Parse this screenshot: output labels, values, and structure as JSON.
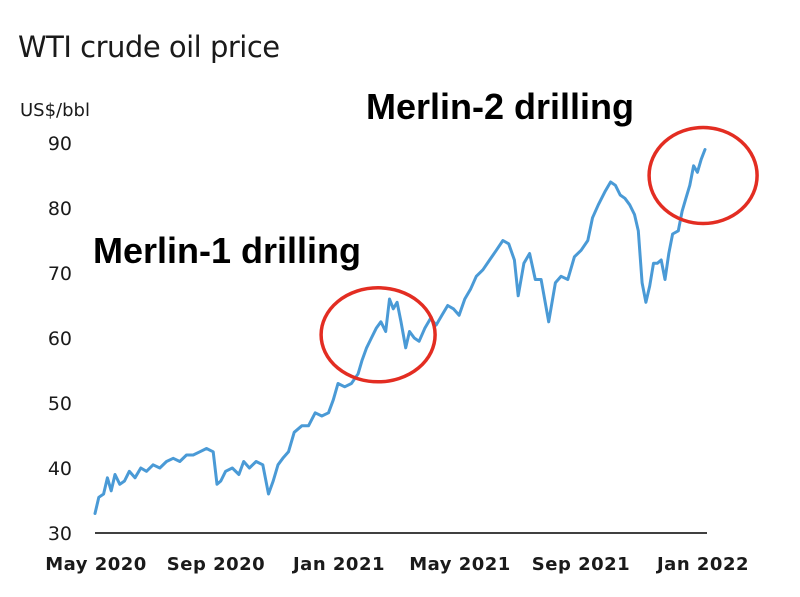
{
  "chart_data": {
    "type": "line",
    "title": "WTI crude oil price",
    "ylabel": "US$/bbl",
    "xlabel": "",
    "ylim": [
      30,
      90
    ],
    "yticks": [
      30,
      40,
      50,
      60,
      70,
      80,
      90
    ],
    "xticks": [
      "May 2020",
      "Sep 2020",
      "Jan 2021",
      "May 2021",
      "Sep 2021",
      "Jan 2022"
    ],
    "xlim": [
      "2020-05-01",
      "2022-01-31"
    ],
    "grid": false,
    "series": [
      {
        "color": "#4a9ad6",
        "points": [
          [
            "2020-05-01",
            33.0
          ],
          [
            "2020-05-05",
            35.5
          ],
          [
            "2020-05-10",
            36.0
          ],
          [
            "2020-05-14",
            38.5
          ],
          [
            "2020-05-18",
            36.5
          ],
          [
            "2020-05-22",
            39.0
          ],
          [
            "2020-05-27",
            37.5
          ],
          [
            "2020-06-01",
            38.0
          ],
          [
            "2020-06-06",
            39.5
          ],
          [
            "2020-06-12",
            38.5
          ],
          [
            "2020-06-18",
            40.0
          ],
          [
            "2020-06-24",
            39.5
          ],
          [
            "2020-07-01",
            40.5
          ],
          [
            "2020-07-08",
            40.0
          ],
          [
            "2020-07-15",
            41.0
          ],
          [
            "2020-07-22",
            41.5
          ],
          [
            "2020-07-29",
            41.0
          ],
          [
            "2020-08-05",
            42.0
          ],
          [
            "2020-08-12",
            42.0
          ],
          [
            "2020-08-19",
            42.5
          ],
          [
            "2020-08-26",
            43.0
          ],
          [
            "2020-09-02",
            42.5
          ],
          [
            "2020-09-06",
            37.5
          ],
          [
            "2020-09-10",
            38.0
          ],
          [
            "2020-09-15",
            39.5
          ],
          [
            "2020-09-22",
            40.0
          ],
          [
            "2020-09-29",
            39.0
          ],
          [
            "2020-10-04",
            41.0
          ],
          [
            "2020-10-10",
            40.0
          ],
          [
            "2020-10-17",
            41.0
          ],
          [
            "2020-10-24",
            40.5
          ],
          [
            "2020-10-30",
            36.0
          ],
          [
            "2020-11-04",
            38.0
          ],
          [
            "2020-11-09",
            40.5
          ],
          [
            "2020-11-14",
            41.5
          ],
          [
            "2020-11-20",
            42.5
          ],
          [
            "2020-11-26",
            45.5
          ],
          [
            "2020-12-04",
            46.5
          ],
          [
            "2020-12-11",
            46.5
          ],
          [
            "2020-12-18",
            48.5
          ],
          [
            "2020-12-25",
            48.0
          ],
          [
            "2021-01-01",
            48.5
          ],
          [
            "2021-01-06",
            50.5
          ],
          [
            "2021-01-11",
            53.0
          ],
          [
            "2021-01-18",
            52.5
          ],
          [
            "2021-01-25",
            53.0
          ],
          [
            "2021-02-01",
            54.5
          ],
          [
            "2021-02-05",
            56.5
          ],
          [
            "2021-02-10",
            58.5
          ],
          [
            "2021-02-15",
            60.0
          ],
          [
            "2021-02-20",
            61.5
          ],
          [
            "2021-02-25",
            62.5
          ],
          [
            "2021-03-02",
            61.0
          ],
          [
            "2021-03-06",
            66.0
          ],
          [
            "2021-03-10",
            64.5
          ],
          [
            "2021-03-14",
            65.5
          ],
          [
            "2021-03-18",
            62.5
          ],
          [
            "2021-03-23",
            58.5
          ],
          [
            "2021-03-27",
            61.0
          ],
          [
            "2021-04-01",
            60.0
          ],
          [
            "2021-04-06",
            59.5
          ],
          [
            "2021-04-12",
            61.5
          ],
          [
            "2021-04-18",
            63.0
          ],
          [
            "2021-04-24",
            62.0
          ],
          [
            "2021-04-30",
            63.5
          ],
          [
            "2021-05-06",
            65.0
          ],
          [
            "2021-05-12",
            64.5
          ],
          [
            "2021-05-18",
            63.5
          ],
          [
            "2021-05-24",
            66.0
          ],
          [
            "2021-05-30",
            67.5
          ],
          [
            "2021-06-05",
            69.5
          ],
          [
            "2021-06-12",
            70.5
          ],
          [
            "2021-06-19",
            72.0
          ],
          [
            "2021-06-26",
            73.5
          ],
          [
            "2021-07-03",
            75.0
          ],
          [
            "2021-07-09",
            74.5
          ],
          [
            "2021-07-15",
            72.0
          ],
          [
            "2021-07-19",
            66.5
          ],
          [
            "2021-07-25",
            71.5
          ],
          [
            "2021-07-31",
            73.0
          ],
          [
            "2021-08-06",
            69.0
          ],
          [
            "2021-08-12",
            69.0
          ],
          [
            "2021-08-20",
            62.5
          ],
          [
            "2021-08-27",
            68.5
          ],
          [
            "2021-09-02",
            69.5
          ],
          [
            "2021-09-09",
            69.0
          ],
          [
            "2021-09-16",
            72.5
          ],
          [
            "2021-09-23",
            73.5
          ],
          [
            "2021-09-30",
            75.0
          ],
          [
            "2021-10-05",
            78.5
          ],
          [
            "2021-10-11",
            80.5
          ],
          [
            "2021-10-18",
            82.5
          ],
          [
            "2021-10-24",
            84.0
          ],
          [
            "2021-10-29",
            83.5
          ],
          [
            "2021-11-03",
            82.0
          ],
          [
            "2021-11-08",
            81.5
          ],
          [
            "2021-11-13",
            80.5
          ],
          [
            "2021-11-18",
            79.0
          ],
          [
            "2021-11-22",
            76.5
          ],
          [
            "2021-11-26",
            68.5
          ],
          [
            "2021-11-30",
            65.5
          ],
          [
            "2021-12-04",
            68.0
          ],
          [
            "2021-12-08",
            71.5
          ],
          [
            "2021-12-12",
            71.5
          ],
          [
            "2021-12-16",
            72.0
          ],
          [
            "2021-12-20",
            69.0
          ],
          [
            "2021-12-24",
            73.0
          ],
          [
            "2021-12-28",
            76.0
          ],
          [
            "2022-01-03",
            76.5
          ],
          [
            "2022-01-07",
            79.5
          ],
          [
            "2022-01-11",
            81.5
          ],
          [
            "2022-01-15",
            83.5
          ],
          [
            "2022-01-19",
            86.5
          ],
          [
            "2022-01-23",
            85.5
          ],
          [
            "2022-01-27",
            87.5
          ],
          [
            "2022-01-31",
            89.0
          ]
        ]
      }
    ],
    "annotations": [
      {
        "text": "Merlin-1 drilling",
        "circle_date": "2021-02-22",
        "circle_value": 60.5,
        "circle_color": "#e32d22"
      },
      {
        "text": "Merlin-2 drilling",
        "circle_date": "2022-01-29",
        "circle_value": 85.0,
        "circle_color": "#e32d22"
      }
    ],
    "colors": {
      "line": "#4a9ad6",
      "annotation_circle": "#e32d22",
      "axis": "#000000"
    }
  }
}
